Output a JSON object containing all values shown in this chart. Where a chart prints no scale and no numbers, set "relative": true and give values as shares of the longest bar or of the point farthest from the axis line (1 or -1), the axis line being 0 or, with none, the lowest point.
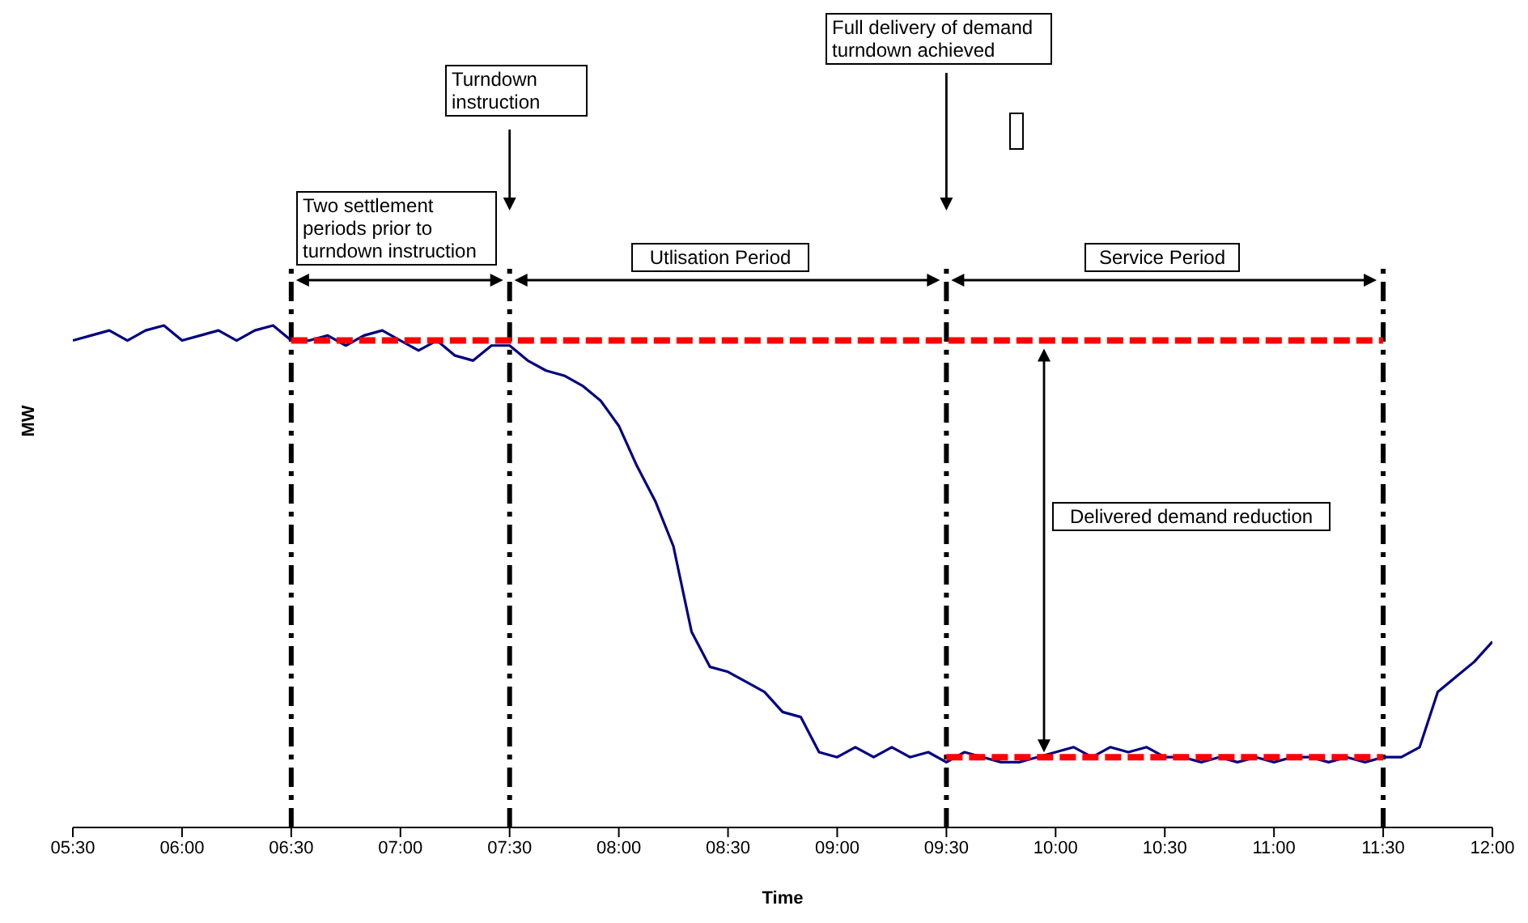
{
  "chart_data": {
    "type": "line",
    "relative": true,
    "xlabel": "Time",
    "ylabel": "MW",
    "xlim": [
      5.5,
      12
    ],
    "xticks": [
      {
        "value": 5.5,
        "label": "05:30"
      },
      {
        "value": 6,
        "label": "06:00"
      },
      {
        "value": 6.5,
        "label": "06:30"
      },
      {
        "value": 7,
        "label": "07:00"
      },
      {
        "value": 7.5,
        "label": "07:30"
      },
      {
        "value": 8,
        "label": "08:00"
      },
      {
        "value": 8.5,
        "label": "08:30"
      },
      {
        "value": 9,
        "label": "09:00"
      },
      {
        "value": 9.5,
        "label": "09:30"
      },
      {
        "value": 10,
        "label": "10:00"
      },
      {
        "value": 10.5,
        "label": "10:30"
      },
      {
        "value": 11,
        "label": "11:00"
      },
      {
        "value": 11.5,
        "label": "11:30"
      },
      {
        "value": 12,
        "label": "12:00"
      }
    ],
    "series": [
      {
        "color": "#000080",
        "line_style": "solid",
        "x": [
          5.5,
          5.583,
          5.667,
          5.75,
          5.833,
          5.917,
          6,
          6.083,
          6.167,
          6.25,
          6.333,
          6.417,
          6.5,
          6.583,
          6.667,
          6.75,
          6.833,
          6.917,
          7,
          7.083,
          7.167,
          7.25,
          7.333,
          7.417,
          7.5,
          7.583,
          7.667,
          7.75,
          7.833,
          7.917,
          8,
          8.083,
          8.167,
          8.25,
          8.333,
          8.417,
          8.5,
          8.583,
          8.667,
          8.75,
          8.833,
          8.917,
          9,
          9.083,
          9.167,
          9.25,
          9.333,
          9.417,
          9.5,
          9.583,
          9.667,
          9.75,
          9.833,
          9.917,
          10,
          10.083,
          10.167,
          10.25,
          10.333,
          10.417,
          10.5,
          10.583,
          10.667,
          10.75,
          10.833,
          10.917,
          11,
          11.083,
          11.167,
          11.25,
          11.333,
          11.417,
          11.5,
          11.583,
          11.667,
          11.75,
          11.833,
          11.917,
          12
        ],
        "values": [
          0.97,
          0.98,
          0.99,
          0.97,
          0.99,
          1,
          0.97,
          0.98,
          0.99,
          0.97,
          0.99,
          1,
          0.97,
          0.97,
          0.98,
          0.96,
          0.98,
          0.99,
          0.97,
          0.95,
          0.97,
          0.94,
          0.93,
          0.96,
          0.96,
          0.93,
          0.91,
          0.9,
          0.88,
          0.85,
          0.8,
          0.72,
          0.65,
          0.56,
          0.39,
          0.32,
          0.31,
          0.29,
          0.27,
          0.23,
          0.22,
          0.15,
          0.14,
          0.16,
          0.14,
          0.16,
          0.14,
          0.15,
          0.13,
          0.15,
          0.14,
          0.13,
          0.13,
          0.14,
          0.15,
          0.16,
          0.14,
          0.16,
          0.15,
          0.16,
          0.14,
          0.14,
          0.13,
          0.14,
          0.13,
          0.14,
          0.13,
          0.14,
          0.14,
          0.13,
          0.14,
          0.13,
          0.14,
          0.14,
          0.16,
          0.27,
          0.3,
          0.33,
          0.37
        ]
      },
      {
        "type": "line",
        "color": "#ff0000",
        "line_style": "dashed",
        "x": [
          6.5,
          11.5
        ],
        "values": [
          0.97,
          0.97
        ]
      },
      {
        "type": "line",
        "color": "#ff0000",
        "line_style": "dashed",
        "x": [
          9.5,
          11.5
        ],
        "values": [
          0.14,
          0.14
        ]
      }
    ],
    "ref_lines": [
      {
        "axis": "x",
        "value": 6.5,
        "color": "#000000"
      },
      {
        "axis": "x",
        "value": 7.5,
        "color": "#000000"
      },
      {
        "axis": "x",
        "value": 9.5,
        "color": "#000000"
      },
      {
        "axis": "x",
        "value": 11.5,
        "color": "#000000"
      }
    ],
    "annotations": [
      "Two settlement periods prior to turndown instruction",
      "Turndown instruction",
      "Full delivery of demand turndown achieved",
      "Utlisation Period",
      "Service Period",
      "Delivered demand reduction"
    ]
  }
}
